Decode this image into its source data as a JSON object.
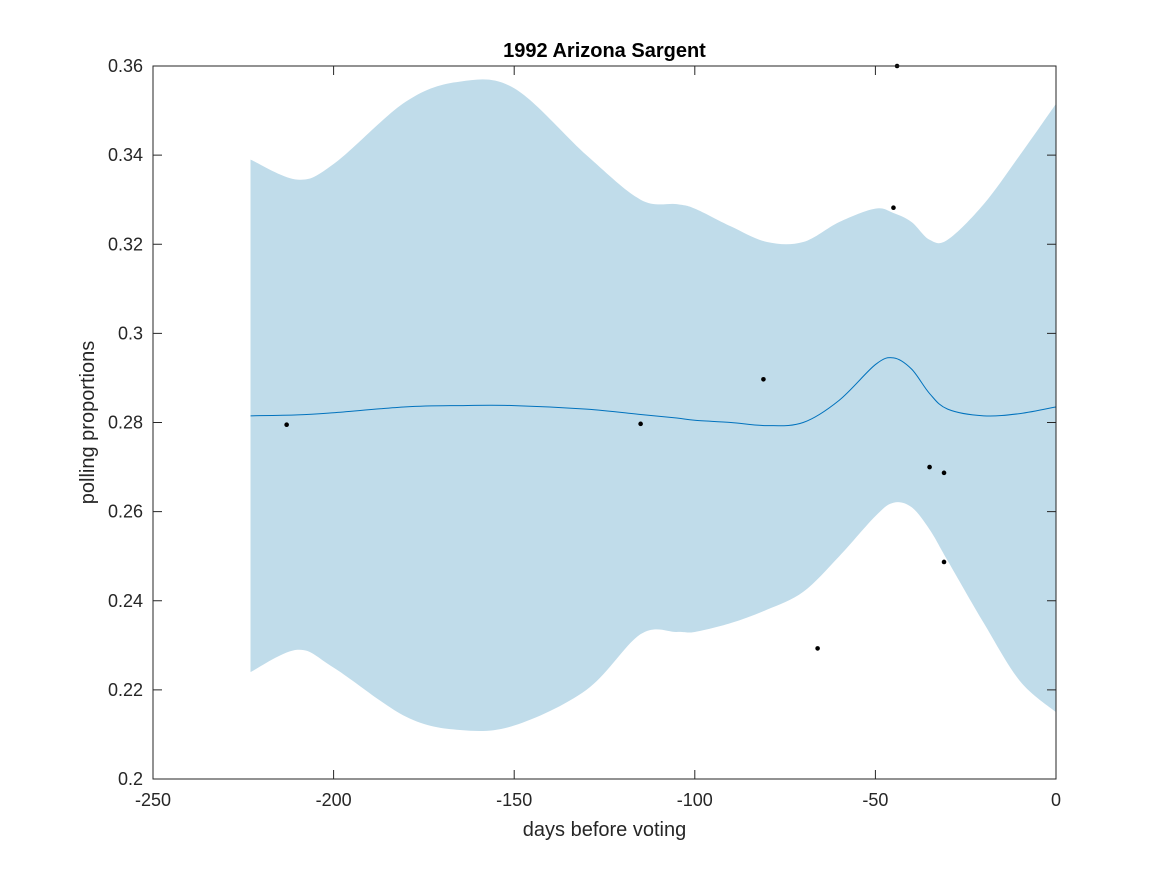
{
  "chart_data": {
    "type": "line",
    "title": "1992 Arizona Sargent",
    "xlabel": "days before voting",
    "ylabel": "polling proportions",
    "xlim": [
      -250,
      0
    ],
    "ylim": [
      0.2,
      0.36
    ],
    "xticks": [
      -250,
      -200,
      -150,
      -100,
      -50,
      0
    ],
    "yticks": [
      0.2,
      0.22,
      0.24,
      0.26,
      0.28,
      0.3,
      0.32,
      0.34,
      0.36
    ],
    "xtick_labels": [
      "-250",
      "-200",
      "-150",
      "-100",
      "-50",
      "0"
    ],
    "ytick_labels": [
      "0.2",
      "0.22",
      "0.24",
      "0.26",
      "0.28",
      "0.3",
      "0.32",
      "0.34",
      "0.36"
    ],
    "grid": false,
    "colors": {
      "band": "#c0dcea",
      "line": "#0072bd",
      "points": "#000000"
    },
    "x": [
      -223,
      -210,
      -200,
      -180,
      -165,
      -150,
      -130,
      -115,
      -105,
      -100,
      -90,
      -80,
      -70,
      -60,
      -50,
      -45,
      -40,
      -35,
      -30,
      -20,
      -10,
      0
    ],
    "series": [
      {
        "values": [
          0.2815,
          0.2817,
          0.2822,
          0.2835,
          0.2838,
          0.2838,
          0.283,
          0.2818,
          0.281,
          0.2805,
          0.28,
          0.2793,
          0.28,
          0.285,
          0.293,
          0.2945,
          0.292,
          0.2865,
          0.283,
          0.2815,
          0.282,
          0.2835
        ]
      },
      {
        "values": [
          0.339,
          0.3345,
          0.338,
          0.352,
          0.3565,
          0.355,
          0.34,
          0.33,
          0.329,
          0.328,
          0.324,
          0.3205,
          0.3205,
          0.325,
          0.328,
          0.327,
          0.325,
          0.321,
          0.321,
          0.329,
          0.34,
          0.3515
        ]
      },
      {
        "values": [
          0.224,
          0.229,
          0.225,
          0.214,
          0.211,
          0.212,
          0.22,
          0.2325,
          0.233,
          0.233,
          0.235,
          0.238,
          0.242,
          0.25,
          0.259,
          0.262,
          0.261,
          0.256,
          0.249,
          0.235,
          0.222,
          0.215
        ]
      }
    ],
    "points": [
      {
        "x": -213,
        "y": 0.2795
      },
      {
        "x": -115,
        "y": 0.2797
      },
      {
        "x": -81,
        "y": 0.2897
      },
      {
        "x": -66,
        "y": 0.2293
      },
      {
        "x": -45,
        "y": 0.3282
      },
      {
        "x": -44,
        "y": 0.36
      },
      {
        "x": -35,
        "y": 0.27
      },
      {
        "x": -31,
        "y": 0.2687
      },
      {
        "x": -31,
        "y": 0.2487
      }
    ]
  }
}
